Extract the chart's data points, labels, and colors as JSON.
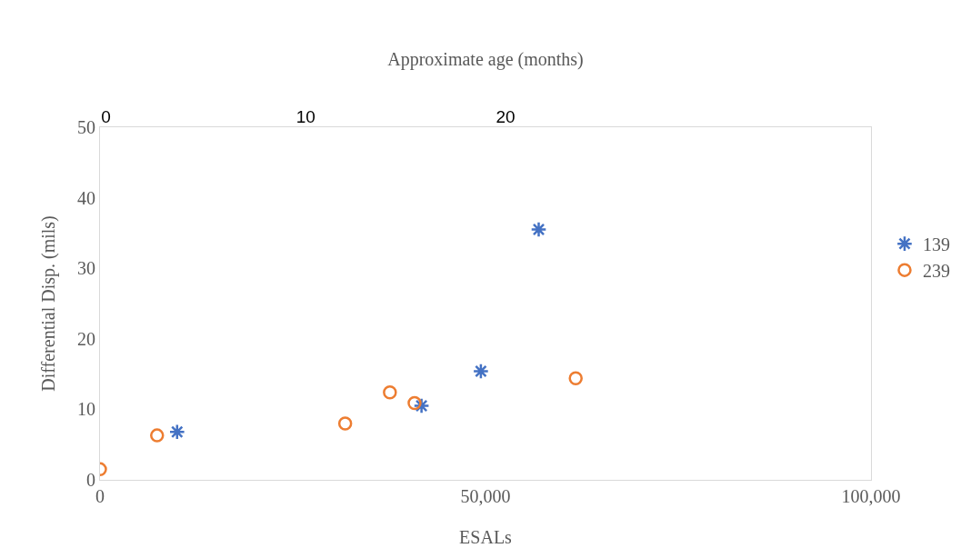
{
  "chart_data": {
    "type": "scatter",
    "xlabel": "ESALs",
    "ylabel": "Differential Disp. (mils)",
    "x2label": "Approximate age (months)",
    "xlim": [
      0,
      100000
    ],
    "xticks": [
      {
        "value": 0,
        "label": "0"
      },
      {
        "value": 50000,
        "label": "50,000"
      },
      {
        "value": 100000,
        "label": "100,000"
      }
    ],
    "ylim": [
      0,
      50
    ],
    "yticks": [
      0,
      10,
      20,
      30,
      40,
      50
    ],
    "x2lim": [
      -0.3,
      38.3
    ],
    "x2ticks": [
      0,
      10,
      20
    ],
    "legend": "right",
    "grid": false,
    "series": [
      {
        "name": "139",
        "color": "#4472c4",
        "marker": "cross",
        "x": [
          10000,
          41700,
          49400,
          56900
        ],
        "values": [
          6.8,
          10.5,
          15.4,
          35.5
        ]
      },
      {
        "name": "239",
        "color": "#ed7d31",
        "marker": "circle",
        "x": [
          0,
          7400,
          31800,
          37600,
          40800,
          61700
        ],
        "values": [
          1.5,
          6.3,
          8.0,
          12.4,
          10.9,
          14.4
        ]
      }
    ]
  }
}
